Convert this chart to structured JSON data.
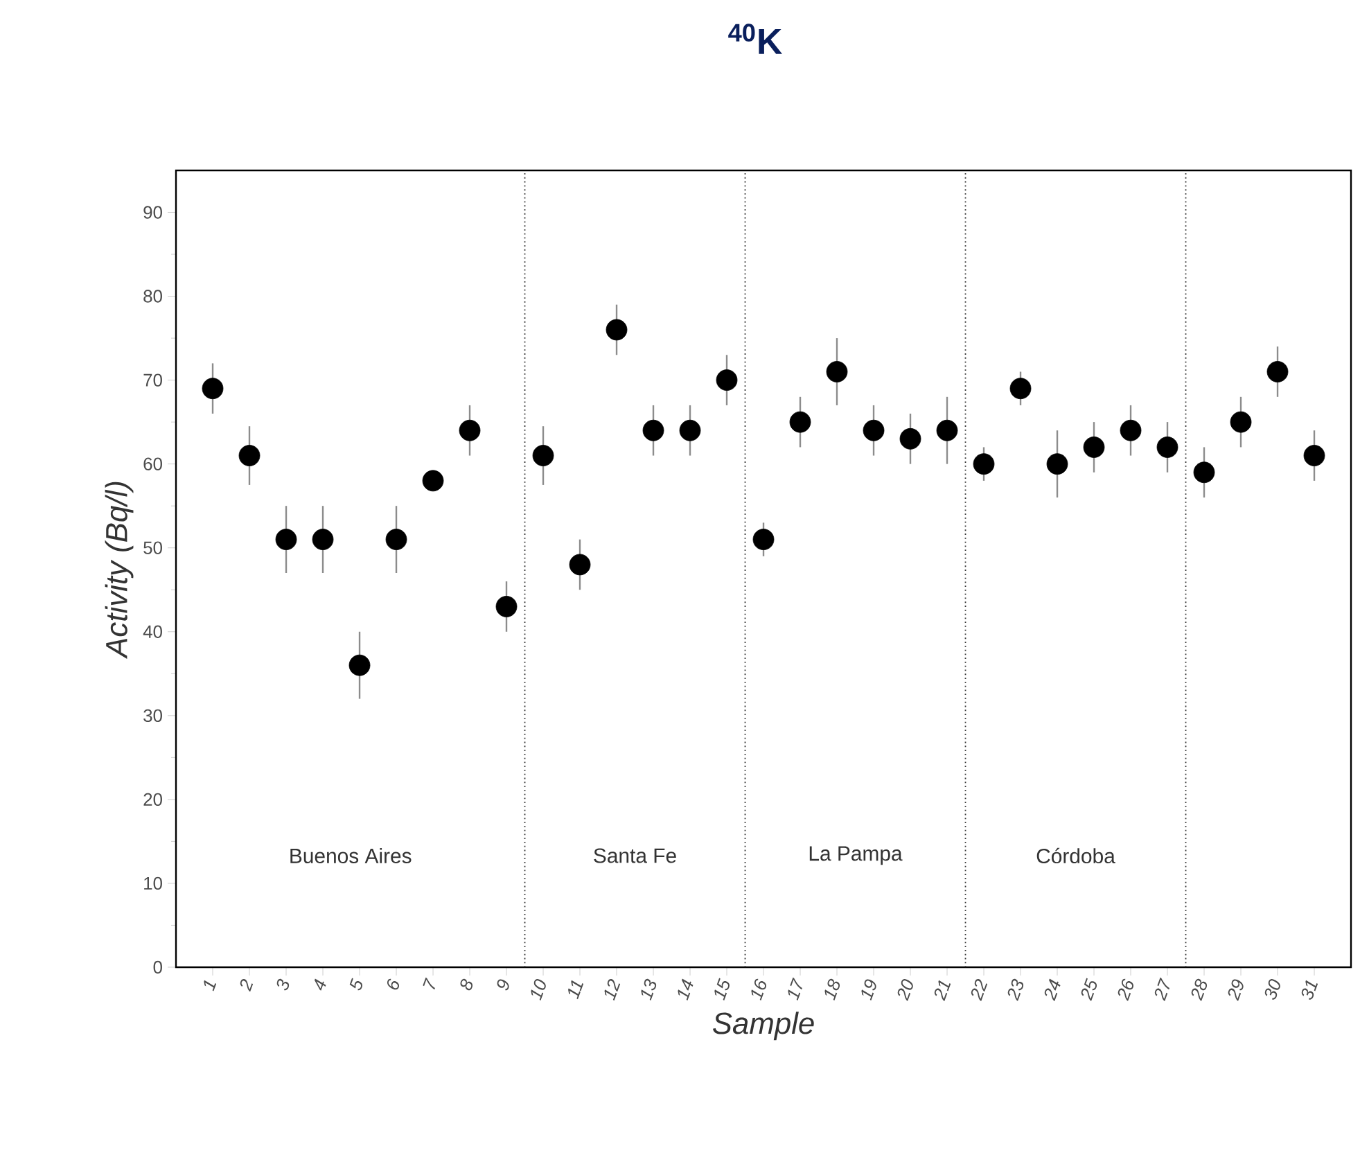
{
  "chart_data": {
    "type": "scatter",
    "title": "$^{40}$K",
    "xlabel": "Sample",
    "ylabel": "Activity (Bq/l)",
    "color": "#000000",
    "marker": "circle",
    "x": [
      1,
      2,
      3,
      4,
      5,
      6,
      7,
      8,
      9,
      10,
      11,
      12,
      13,
      14,
      15,
      16,
      17,
      18,
      19,
      20,
      21,
      22,
      23,
      24,
      25,
      26,
      27,
      28,
      29,
      30,
      31
    ],
    "values": [
      69,
      61,
      51,
      51,
      36,
      51,
      58,
      64,
      43,
      61,
      48,
      76,
      64,
      64,
      70,
      51,
      65,
      71,
      64,
      63,
      64,
      60,
      69,
      60,
      62,
      64,
      62,
      59,
      65,
      71,
      61
    ],
    "errors": [
      3,
      3.5,
      4,
      4,
      4,
      4,
      1,
      3,
      3,
      3.5,
      3,
      3,
      3,
      3,
      3,
      2,
      3,
      4,
      3,
      3,
      4,
      2,
      2,
      4,
      3,
      3,
      3,
      3,
      3,
      3,
      3
    ],
    "xlim": [
      0,
      32
    ],
    "ylim": [
      0,
      95
    ],
    "xticks": [
      1,
      2,
      3,
      4,
      5,
      6,
      7,
      8,
      9,
      10,
      11,
      12,
      13,
      14,
      15,
      16,
      17,
      18,
      19,
      20,
      21,
      22,
      23,
      24,
      25,
      26,
      27,
      28,
      29,
      30,
      31
    ],
    "yticks": [
      0,
      10,
      20,
      30,
      40,
      50,
      60,
      70,
      80,
      90
    ],
    "ref_lines": [
      {
        "axis": "x",
        "value": 9.5,
        "line_style": "dotted"
      },
      {
        "axis": "x",
        "value": 15.5,
        "line_style": "dotted"
      },
      {
        "axis": "x",
        "value": 21.5,
        "line_style": "dotted"
      },
      {
        "axis": "x",
        "value": 27.5,
        "line_style": "dotted"
      }
    ],
    "annotations": [
      "Buenos Aires",
      "Santa Fe",
      "La Pampa",
      "Córdoba"
    ]
  }
}
